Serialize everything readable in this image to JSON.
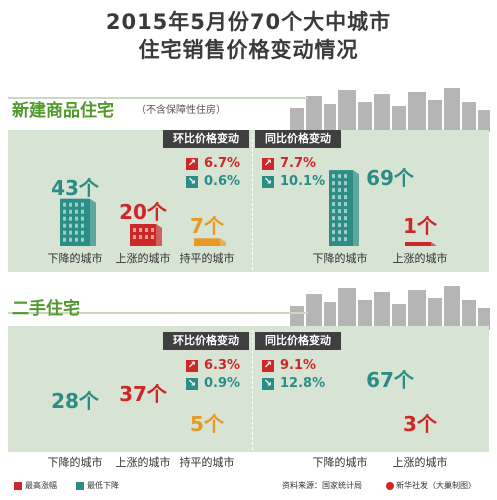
{
  "title": {
    "line1": "2015年5月份70个大中城市",
    "line2": "住宅销售价格变动情况"
  },
  "sections": [
    {
      "label": "新建商品住宅",
      "note": "（不含保障性住房）",
      "mom_label": "环比价格变动",
      "yoy_label": "同比价格变动",
      "mom": {
        "max_rise": "6.7%",
        "max_fall": "0.6%",
        "categories": [
          "下降的城市",
          "上涨的城市",
          "持平的城市"
        ],
        "counts": [
          "43个",
          "20个",
          "7个"
        ]
      },
      "yoy": {
        "max_rise": "7.7%",
        "max_fall": "10.1%",
        "categories": [
          "下降的城市",
          "上涨的城市"
        ],
        "counts": [
          "69个",
          "1个"
        ]
      }
    },
    {
      "label": "二手住宅",
      "note": "",
      "mom_label": "环比价格变动",
      "yoy_label": "同比价格变动",
      "mom": {
        "max_rise": "6.3%",
        "max_fall": "0.9%",
        "categories": [
          "下降的城市",
          "上涨的城市",
          "持平的城市"
        ],
        "counts": [
          "28个",
          "37个",
          "5个"
        ]
      },
      "yoy": {
        "max_rise": "9.1%",
        "max_fall": "12.8%",
        "categories": [
          "下降的城市",
          "上涨的城市"
        ],
        "counts": [
          "67个",
          "3个"
        ]
      }
    }
  ],
  "legend": {
    "rise": "最高涨幅",
    "fall": "最低下降"
  },
  "source": "资料来源：国家统计局",
  "credit": "新华社发（大巢制图）",
  "colors": {
    "teal": "#2c8c86",
    "red": "#cc2828",
    "orange": "#e59a25",
    "panel": "#d7e3d3",
    "green": "#4f9a2b"
  },
  "chart_data": [
    {
      "type": "bar",
      "title": "新建商品住宅 环比价格变动",
      "categories": [
        "下降的城市",
        "上涨的城市",
        "持平的城市"
      ],
      "values": [
        43,
        20,
        7
      ],
      "unit": "个",
      "max_rise_pct": 6.7,
      "max_fall_pct": 0.6
    },
    {
      "type": "bar",
      "title": "新建商品住宅 同比价格变动",
      "categories": [
        "下降的城市",
        "上涨的城市"
      ],
      "values": [
        69,
        1
      ],
      "unit": "个",
      "max_rise_pct": 7.7,
      "max_fall_pct": 10.1
    },
    {
      "type": "bar",
      "title": "二手住宅 环比价格变动",
      "categories": [
        "下降的城市",
        "上涨的城市",
        "持平的城市"
      ],
      "values": [
        28,
        37,
        5
      ],
      "unit": "个",
      "max_rise_pct": 6.3,
      "max_fall_pct": 0.9
    },
    {
      "type": "bar",
      "title": "二手住宅 同比价格变动",
      "categories": [
        "下降的城市",
        "上涨的城市"
      ],
      "values": [
        67,
        3
      ],
      "unit": "个",
      "max_rise_pct": 9.1,
      "max_fall_pct": 12.8
    }
  ]
}
